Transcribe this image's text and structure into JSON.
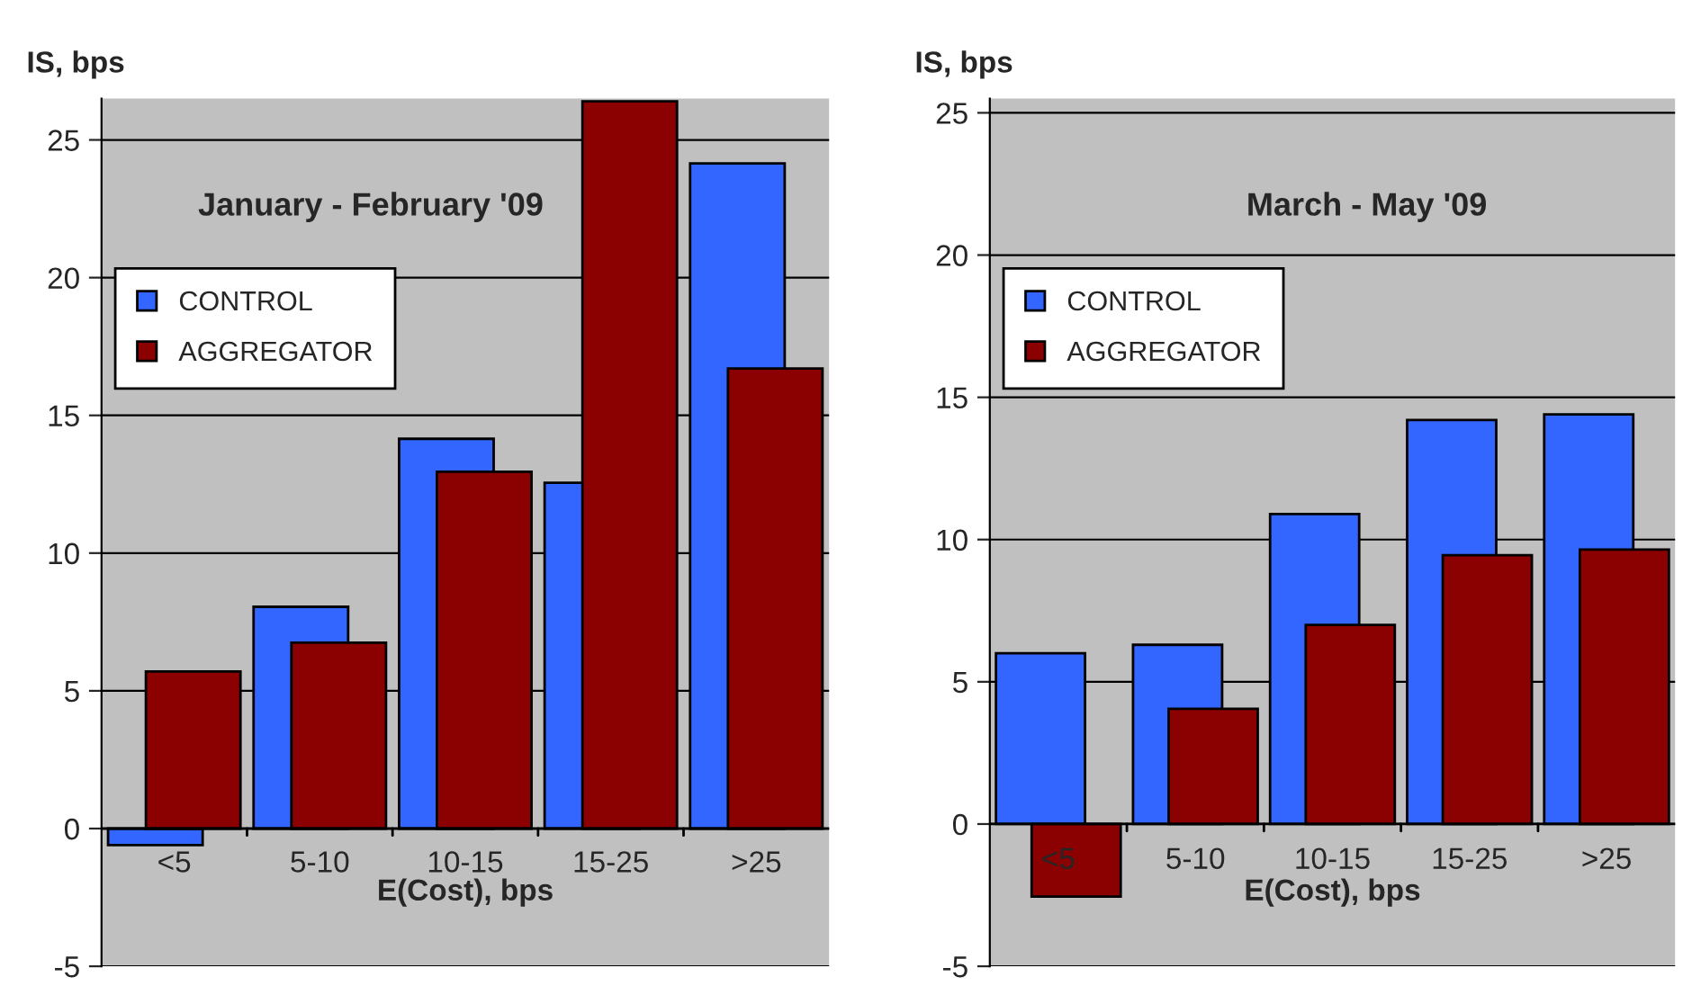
{
  "chart_data": [
    {
      "type": "bar",
      "title": "January - February '09",
      "ylabel": "IS, bps",
      "xlabel": "E(Cost), bps",
      "categories": [
        "<5",
        "5-10",
        "10-15",
        "15-25",
        ">25"
      ],
      "ylim": [
        -5,
        26.5
      ],
      "yticks": [
        -5,
        0,
        5,
        10,
        15,
        20,
        25
      ],
      "grid": "y",
      "legend": "top left",
      "series": [
        {
          "name": "CONTROL",
          "color": "#3366ff",
          "values": [
            -0.6,
            8.05,
            14.15,
            12.55,
            24.15
          ]
        },
        {
          "name": "AGGREGATOR",
          "color": "#8b0000",
          "values": [
            5.7,
            6.75,
            12.95,
            26.4,
            16.7
          ]
        }
      ]
    },
    {
      "type": "bar",
      "title": "March - May '09",
      "ylabel": "IS, bps",
      "xlabel": "E(Cost), bps",
      "categories": [
        "<5",
        "5-10",
        "10-15",
        "15-25",
        ">25"
      ],
      "ylim": [
        -5,
        25.5
      ],
      "yticks": [
        -5,
        0,
        5,
        10,
        15,
        20,
        25
      ],
      "grid": "y",
      "legend": "top left",
      "series": [
        {
          "name": "CONTROL",
          "color": "#3366ff",
          "values": [
            6.0,
            6.3,
            10.9,
            14.2,
            14.4
          ]
        },
        {
          "name": "AGGREGATOR",
          "color": "#8b0000",
          "values": [
            -2.55,
            4.05,
            7.0,
            9.45,
            9.65
          ]
        }
      ]
    }
  ]
}
